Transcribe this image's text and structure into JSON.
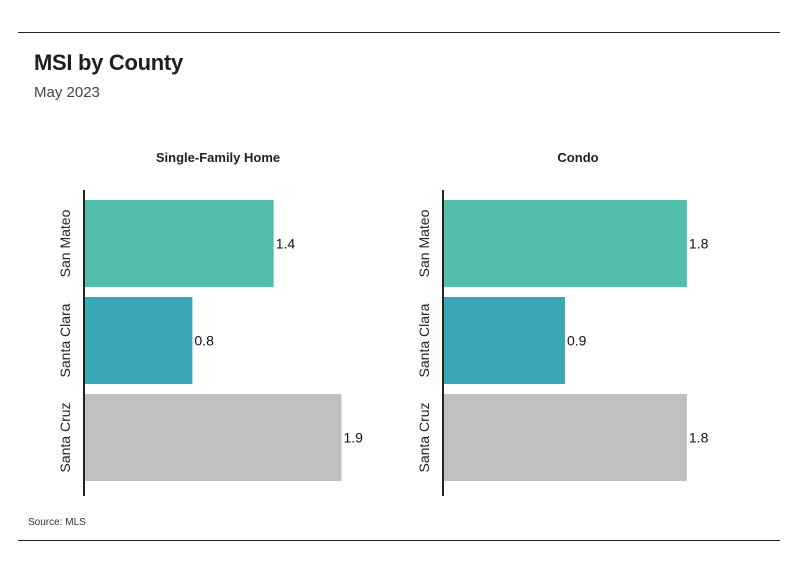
{
  "title": "MSI by County",
  "subtitle": "May 2023",
  "source": "Source:  MLS",
  "chart_data": [
    {
      "type": "bar",
      "orientation": "horizontal",
      "title": "Single-Family Home",
      "categories": [
        "San Mateo",
        "Santa Clara",
        "Santa Cruz"
      ],
      "values": [
        1.4,
        0.8,
        1.9
      ],
      "value_labels": [
        "1.4",
        "0.8",
        "1.9"
      ],
      "colors": [
        "#52bfab",
        "#3aa7b4",
        "#c0c0c0"
      ],
      "xlim": [
        0,
        2.0
      ],
      "grid": false,
      "legend": "none"
    },
    {
      "type": "bar",
      "orientation": "horizontal",
      "title": "Condo",
      "categories": [
        "San Mateo",
        "Santa Clara",
        "Santa Cruz"
      ],
      "values": [
        1.8,
        0.9,
        1.8
      ],
      "value_labels": [
        "1.8",
        "0.9",
        "1.8"
      ],
      "colors": [
        "#52bfab",
        "#3aa7b4",
        "#c0c0c0"
      ],
      "xlim": [
        0,
        2.0
      ],
      "grid": false,
      "legend": "none"
    }
  ]
}
